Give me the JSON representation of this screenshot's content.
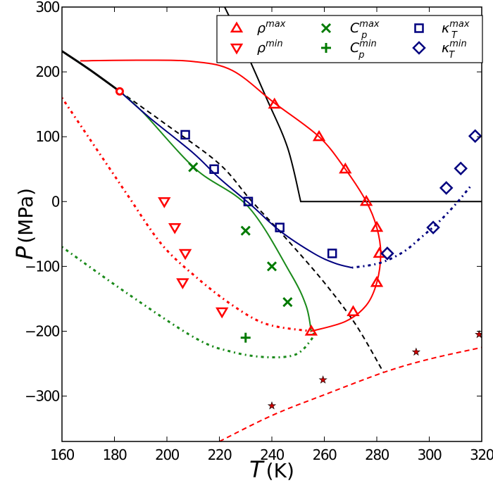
{
  "chart_data": {
    "type": "scatter",
    "xlabel": {
      "symbol": "T",
      "unit": "(K)"
    },
    "ylabel": {
      "symbol": "P",
      "unit": "(MPa)"
    },
    "xlim": [
      160,
      320
    ],
    "ylim": [
      -370,
      300
    ],
    "xticks": [
      160,
      180,
      200,
      220,
      240,
      260,
      280,
      300,
      320
    ],
    "yticks": [
      -300,
      -200,
      -100,
      0,
      100,
      200,
      300
    ],
    "grid": false,
    "legend_position": "top-right",
    "colors": {
      "red": "#ff0000",
      "green": "#007a00",
      "navy": "#00007f",
      "black": "#000000"
    },
    "legend": [
      {
        "key": "rho_max",
        "base": "ρ",
        "sup": "max",
        "sub": "",
        "marker": "triangle-up",
        "color": "#ff0000"
      },
      {
        "key": "rho_min",
        "base": "ρ",
        "sup": "min",
        "sub": "",
        "marker": "triangle-down",
        "color": "#ff0000"
      },
      {
        "key": "cp_max",
        "base": "C",
        "sup": "max",
        "sub": "p",
        "marker": "x",
        "color": "#007a00"
      },
      {
        "key": "cp_min",
        "base": "C",
        "sup": "min",
        "sub": "p",
        "marker": "plus",
        "color": "#007a00"
      },
      {
        "key": "kt_max",
        "base": "κ",
        "sup": "max",
        "sub": "T",
        "marker": "square",
        "color": "#00007f"
      },
      {
        "key": "kt_min",
        "base": "κ",
        "sup": "min",
        "sub": "T",
        "marker": "diamond",
        "color": "#00007f"
      }
    ],
    "point_series": [
      {
        "key": "rho_max",
        "marker": "triangle-up",
        "color": "#ff0000",
        "points": [
          [
            241,
            150
          ],
          [
            258,
            100
          ],
          [
            268,
            50
          ],
          [
            276,
            0
          ],
          [
            280,
            -40
          ],
          [
            281,
            -80
          ],
          [
            280,
            -125
          ],
          [
            271,
            -170
          ],
          [
            255,
            -200
          ]
        ]
      },
      {
        "key": "rho_min",
        "marker": "triangle-down",
        "color": "#ff0000",
        "points": [
          [
            199,
            0
          ],
          [
            203,
            -40
          ],
          [
            207,
            -80
          ],
          [
            206,
            -125
          ],
          [
            221,
            -170
          ]
        ]
      },
      {
        "key": "cp_max",
        "marker": "x",
        "color": "#007a00",
        "points": [
          [
            210,
            53
          ],
          [
            230,
            -45
          ],
          [
            240,
            -100
          ],
          [
            246,
            -155
          ]
        ]
      },
      {
        "key": "cp_min",
        "marker": "plus",
        "color": "#007a00",
        "points": [
          [
            230,
            -210
          ]
        ]
      },
      {
        "key": "kt_max",
        "marker": "square",
        "color": "#00007f",
        "points": [
          [
            207,
            103
          ],
          [
            218,
            50
          ],
          [
            231,
            0
          ],
          [
            243,
            -40
          ],
          [
            263,
            -80
          ]
        ]
      },
      {
        "key": "kt_min",
        "marker": "diamond",
        "color": "#00007f",
        "points": [
          [
            284,
            -80
          ],
          [
            301.5,
            -40
          ],
          [
            306.5,
            21
          ],
          [
            312,
            51
          ],
          [
            317.5,
            101
          ]
        ]
      },
      {
        "key": "stars",
        "marker": "star",
        "color": "#cc0000",
        "points": [
          [
            240,
            -315
          ],
          [
            259.5,
            -275
          ],
          [
            295,
            -232
          ],
          [
            319,
            -205
          ]
        ]
      },
      {
        "key": "critical_point",
        "marker": "circle",
        "color": "#ff0000",
        "points": [
          [
            182,
            170
          ]
        ]
      }
    ],
    "line_series": [
      {
        "key": "black-solid-left",
        "style": "solid",
        "width": 3,
        "color": "#000000",
        "points": [
          [
            160,
            232
          ],
          [
            170,
            205
          ],
          [
            182,
            170
          ]
        ]
      },
      {
        "key": "black-dashed",
        "style": "dashed",
        "width": 2,
        "color": "#000000",
        "points": [
          [
            182,
            170
          ],
          [
            200,
            118
          ],
          [
            220,
            58
          ],
          [
            232,
            2
          ],
          [
            245,
            -55
          ],
          [
            260,
            -125
          ],
          [
            272,
            -190
          ],
          [
            282.5,
            -263
          ]
        ]
      },
      {
        "key": "black-solid-right",
        "style": "solid",
        "width": 2,
        "color": "#000000",
        "points": [
          [
            222,
            300
          ],
          [
            228,
            250
          ],
          [
            238,
            159
          ],
          [
            246,
            83
          ],
          [
            251,
            0
          ],
          [
            320,
            0
          ]
        ]
      },
      {
        "key": "red-solid",
        "style": "solid",
        "width": 2,
        "color": "#ff0000",
        "points": [
          [
            167,
            217
          ],
          [
            190,
            218
          ],
          [
            210,
            216
          ],
          [
            225,
            202
          ],
          [
            241,
            152
          ],
          [
            258,
            100
          ],
          [
            268,
            50
          ],
          [
            276,
            0
          ],
          [
            280,
            -40
          ],
          [
            281.5,
            -80
          ],
          [
            280,
            -125
          ],
          [
            276,
            -160
          ],
          [
            268,
            -185
          ],
          [
            255,
            -200
          ]
        ]
      },
      {
        "key": "red-dotted",
        "style": "dashdot",
        "width": 3,
        "color": "#ff0000",
        "points": [
          [
            160,
            160
          ],
          [
            170,
            100
          ],
          [
            180,
            40
          ],
          [
            185,
            10
          ],
          [
            198,
            -66
          ],
          [
            211,
            -116
          ],
          [
            225,
            -160
          ],
          [
            238,
            -189
          ],
          [
            255,
            -200
          ]
        ]
      },
      {
        "key": "green-solid",
        "style": "solid",
        "width": 2,
        "color": "#1a8a1a",
        "points": [
          [
            182,
            170
          ],
          [
            191,
            137
          ],
          [
            211,
            50
          ],
          [
            231,
            -8
          ],
          [
            247,
            -110
          ],
          [
            253,
            -160
          ],
          [
            255,
            -200
          ]
        ]
      },
      {
        "key": "green-dotted",
        "style": "dashdot",
        "width": 3,
        "color": "#1a8a1a",
        "points": [
          [
            160,
            -70
          ],
          [
            185,
            -142
          ],
          [
            211,
            -211
          ],
          [
            225,
            -232
          ],
          [
            238,
            -240
          ],
          [
            249,
            -236
          ],
          [
            255,
            -213
          ],
          [
            256,
            -200
          ]
        ]
      },
      {
        "key": "blue-solid",
        "style": "solid",
        "width": 2,
        "color": "#00007f",
        "points": [
          [
            182,
            170
          ],
          [
            193.5,
            129
          ],
          [
            210,
            75
          ],
          [
            220,
            36
          ],
          [
            232,
            -5
          ],
          [
            243,
            -45
          ],
          [
            256,
            -80
          ],
          [
            264,
            -95
          ],
          [
            270.5,
            -102
          ]
        ]
      },
      {
        "key": "blue-dotted",
        "style": "dashdot",
        "width": 3,
        "color": "#00007f",
        "points": [
          [
            270.5,
            -102
          ],
          [
            281,
            -95
          ],
          [
            290,
            -78
          ],
          [
            297,
            -55
          ],
          [
            304,
            -30
          ],
          [
            310.5,
            -2
          ],
          [
            316,
            25
          ]
        ]
      },
      {
        "key": "red-dashed",
        "style": "dashed",
        "width": 2,
        "color": "#ff0000",
        "points": [
          [
            220,
            -370
          ],
          [
            240,
            -330
          ],
          [
            260,
            -298
          ],
          [
            283,
            -263
          ],
          [
            300,
            -243
          ],
          [
            320,
            -225
          ]
        ]
      }
    ]
  }
}
